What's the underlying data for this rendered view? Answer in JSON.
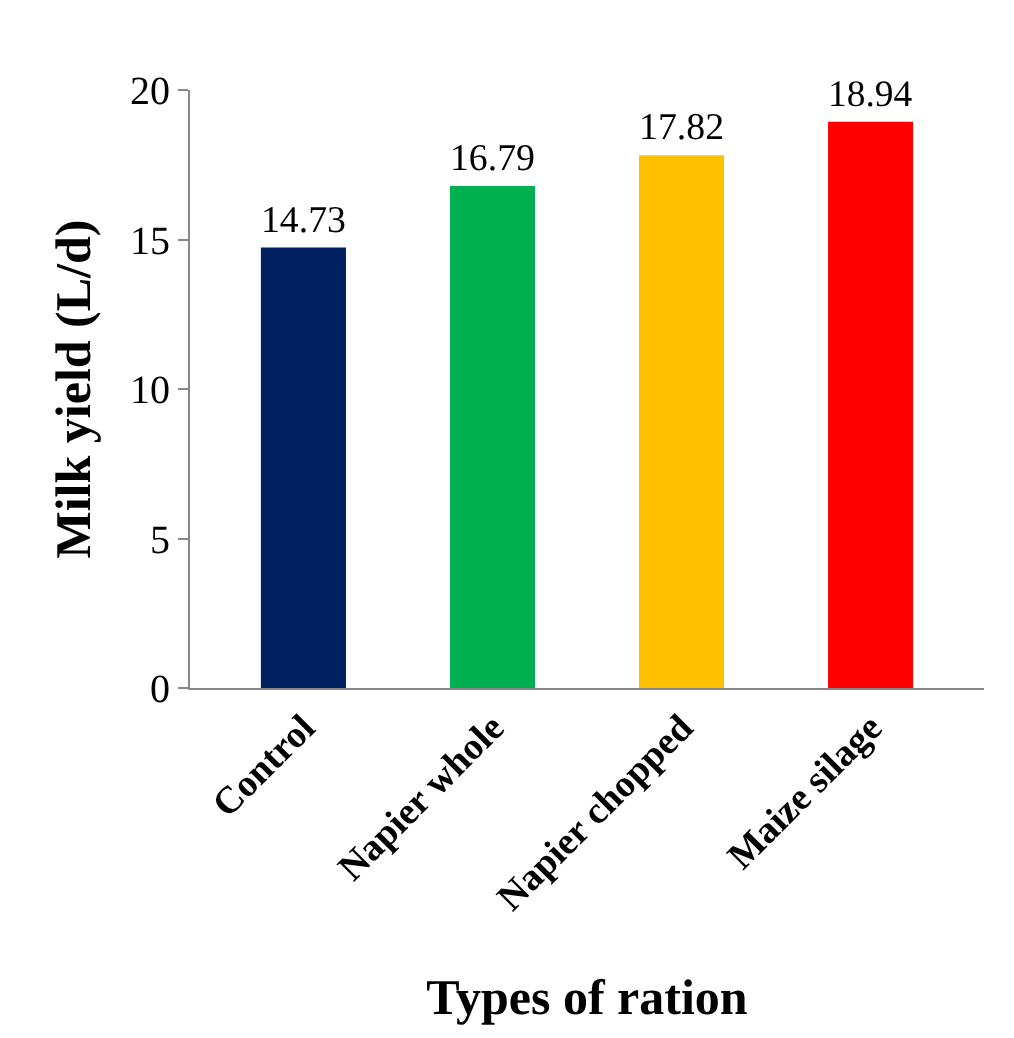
{
  "chart_data": {
    "type": "bar",
    "xlabel": "Types of ration",
    "ylabel": "Milk yield (L/d)",
    "categories": [
      "Control",
      "Napier whole",
      "Napier chopped",
      "Maize silage"
    ],
    "values": [
      14.73,
      16.79,
      17.82,
      18.94
    ],
    "colors": [
      "#002060",
      "#00b050",
      "#ffc000",
      "#ff0000"
    ],
    "ylim": [
      0,
      20
    ],
    "yticks": [
      0,
      5,
      10,
      15,
      20
    ],
    "data_labels": true
  }
}
